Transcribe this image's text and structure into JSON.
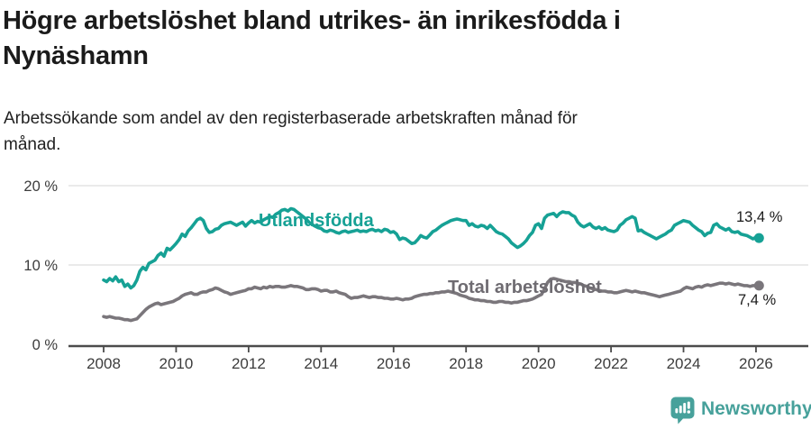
{
  "header": {
    "title_lines": [
      "Högre arbetslöshet bland utrikes- än inrikesfödda i",
      "Nynäshamn"
    ],
    "subtitle_lines": [
      "Arbetssökande som andel av den registerbaserade arbetskraften månad för",
      "månad."
    ]
  },
  "footer": {
    "brand_name": "Newsworthy"
  },
  "colors": {
    "foreign_born_line": "#16a195",
    "total_line": "#7a767b",
    "total_label": "#6e6b71",
    "grid": "#dedede",
    "axis": "#4b4b4b",
    "tick_text": "#3c3c3c",
    "title_text": "#1b1b1b",
    "brand": "#47a19b"
  },
  "chart_data": {
    "type": "line",
    "title": "Högre arbetslöshet bland utrikes- än inrikesfödda i Nynäshamn",
    "subtitle": "Arbetssökande som andel av den registerbaserade arbetskraften månad för månad.",
    "unit": "%",
    "x_axis": {
      "ticks": [
        "2008",
        "2010",
        "2012",
        "2014",
        "2016",
        "2018",
        "2020",
        "2022",
        "2024",
        "2026"
      ],
      "tick_years": [
        2008,
        2010,
        2012,
        2014,
        2016,
        2018,
        2020,
        2022,
        2024,
        2026
      ]
    },
    "y_axis": {
      "ticks": [
        {
          "label": "20 %",
          "value": 20
        },
        {
          "label": "10 %",
          "value": 10
        },
        {
          "label": "0 %",
          "value": 0
        }
      ],
      "range": [
        0,
        20
      ],
      "grid": true
    },
    "legend_position": "inline-labels",
    "start_year": 2008,
    "interval": "monthly",
    "series": [
      {
        "name": "Utlandsfödda",
        "color": "#16a195",
        "end_label": "13,4 %",
        "end_value": 13.4,
        "values": [
          8.1,
          7.9,
          8.3,
          8.0,
          8.5,
          7.9,
          8.1,
          7.3,
          7.6,
          7.1,
          7.4,
          8.1,
          9.2,
          9.7,
          9.4,
          10.2,
          10.4,
          10.6,
          11.2,
          11.5,
          11.1,
          12.1,
          11.9,
          12.3,
          12.7,
          13.2,
          13.9,
          13.6,
          14.3,
          14.7,
          15.2,
          15.7,
          15.9,
          15.6,
          14.6,
          14.1,
          14.2,
          14.5,
          14.6,
          15.0,
          15.2,
          15.3,
          15.4,
          15.2,
          15.0,
          15.2,
          15.4,
          14.9,
          15.3,
          15.6,
          15.3,
          15.5,
          15.4,
          15.7,
          15.9,
          16.1,
          16.0,
          16.4,
          16.6,
          16.9,
          17.0,
          16.8,
          17.1,
          17.0,
          16.7,
          16.4,
          16.1,
          15.8,
          15.4,
          15.1,
          14.9,
          14.7,
          14.6,
          14.3,
          14.2,
          14.4,
          14.3,
          14.1,
          14.0,
          14.2,
          14.3,
          14.1,
          14.2,
          14.3,
          14.4,
          14.2,
          14.3,
          14.2,
          14.4,
          14.5,
          14.3,
          14.4,
          14.2,
          14.5,
          14.4,
          14.1,
          14.2,
          13.9,
          13.2,
          13.4,
          13.3,
          13.0,
          12.7,
          12.8,
          13.2,
          13.7,
          13.5,
          13.4,
          13.8,
          14.2,
          14.4,
          14.7,
          15.0,
          15.2,
          15.4,
          15.6,
          15.7,
          15.8,
          15.7,
          15.6,
          15.6,
          15.0,
          15.2,
          14.9,
          14.8,
          15.0,
          14.9,
          14.6,
          15.0,
          14.6,
          14.2,
          14.0,
          13.9,
          13.6,
          13.3,
          12.8,
          12.5,
          12.2,
          12.4,
          12.7,
          13.1,
          13.7,
          14.1,
          15.0,
          15.2,
          14.6,
          15.9,
          16.3,
          16.4,
          16.5,
          16.1,
          16.5,
          16.7,
          16.6,
          16.6,
          16.3,
          16.1,
          15.4,
          15.0,
          14.8,
          15.0,
          15.2,
          14.8,
          14.6,
          14.8,
          14.5,
          14.7,
          14.4,
          14.3,
          14.2,
          14.4,
          15.0,
          15.3,
          15.7,
          15.9,
          16.1,
          15.9,
          14.3,
          14.4,
          14.1,
          13.9,
          13.7,
          13.5,
          13.3,
          13.5,
          13.7,
          13.9,
          14.2,
          14.4,
          15.0,
          15.2,
          15.4,
          15.6,
          15.5,
          15.4,
          15.0,
          14.7,
          14.4,
          14.2,
          13.7,
          14.0,
          14.1,
          15.0,
          15.2,
          14.8,
          14.6,
          14.4,
          14.6,
          14.2,
          14.1,
          14.2,
          13.9,
          13.8,
          13.7,
          13.5,
          13.3,
          13.5,
          13.4
        ]
      },
      {
        "name": "Total arbetslöshet",
        "color": "#7a767b",
        "end_label": "7,4 %",
        "end_value": 7.4,
        "values": [
          3.5,
          3.4,
          3.5,
          3.4,
          3.3,
          3.3,
          3.2,
          3.1,
          3.1,
          3.0,
          3.1,
          3.2,
          3.6,
          4.0,
          4.4,
          4.7,
          4.9,
          5.1,
          5.2,
          5.0,
          5.1,
          5.2,
          5.3,
          5.4,
          5.6,
          5.8,
          6.1,
          6.3,
          6.4,
          6.5,
          6.3,
          6.3,
          6.5,
          6.6,
          6.6,
          6.8,
          6.9,
          7.1,
          7.0,
          6.8,
          6.6,
          6.5,
          6.3,
          6.4,
          6.5,
          6.6,
          6.7,
          6.8,
          7.0,
          7.0,
          7.2,
          7.1,
          7.0,
          7.2,
          7.1,
          7.3,
          7.2,
          7.3,
          7.3,
          7.2,
          7.2,
          7.3,
          7.4,
          7.3,
          7.3,
          7.2,
          7.1,
          6.9,
          6.9,
          7.0,
          7.0,
          6.9,
          6.7,
          6.8,
          6.8,
          6.6,
          6.6,
          6.7,
          6.5,
          6.4,
          6.3,
          6.0,
          5.8,
          5.9,
          5.9,
          6.0,
          6.1,
          6.0,
          5.9,
          6.0,
          6.0,
          5.9,
          5.9,
          5.8,
          5.8,
          5.7,
          5.7,
          5.8,
          5.7,
          5.6,
          5.7,
          5.7,
          5.8,
          6.0,
          6.1,
          6.2,
          6.3,
          6.3,
          6.4,
          6.4,
          6.5,
          6.5,
          6.6,
          6.6,
          6.7,
          6.6,
          6.5,
          6.4,
          6.2,
          6.1,
          6.0,
          5.8,
          5.7,
          5.6,
          5.6,
          5.5,
          5.5,
          5.4,
          5.4,
          5.3,
          5.3,
          5.4,
          5.4,
          5.3,
          5.3,
          5.2,
          5.3,
          5.3,
          5.4,
          5.5,
          5.5,
          5.6,
          5.7,
          5.9,
          6.1,
          6.3,
          7.0,
          7.8,
          8.2,
          8.3,
          8.2,
          8.1,
          8.0,
          7.9,
          7.9,
          7.8,
          7.8,
          7.7,
          7.6,
          7.4,
          7.3,
          7.1,
          7.0,
          6.9,
          6.8,
          6.7,
          6.7,
          6.6,
          6.6,
          6.5,
          6.5,
          6.6,
          6.7,
          6.8,
          6.7,
          6.6,
          6.7,
          6.6,
          6.5,
          6.5,
          6.4,
          6.3,
          6.2,
          6.1,
          6.0,
          6.1,
          6.2,
          6.3,
          6.4,
          6.5,
          6.6,
          6.7,
          7.0,
          7.2,
          7.1,
          7.0,
          7.2,
          7.3,
          7.2,
          7.4,
          7.5,
          7.4,
          7.5,
          7.6,
          7.7,
          7.7,
          7.6,
          7.7,
          7.6,
          7.5,
          7.6,
          7.5,
          7.4,
          7.4,
          7.3,
          7.4,
          7.4,
          7.4
        ]
      }
    ]
  }
}
